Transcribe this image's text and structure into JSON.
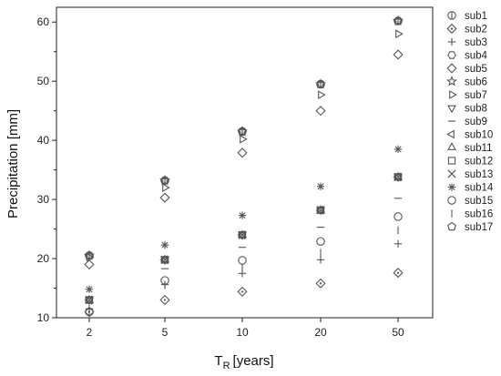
{
  "chart_data": {
    "type": "scatter",
    "xlabel": "T",
    "xlabel_sub": "R",
    "xlabel_unit": "[years]",
    "ylabel": "Precipitation [mm]",
    "categories": [
      "2",
      "5",
      "10",
      "20",
      "50"
    ],
    "y_ticks": [
      "10",
      "20",
      "30",
      "40",
      "50",
      "60"
    ],
    "ylim": [
      10,
      62.5
    ],
    "grid": false,
    "legend_position": "right",
    "marker_color": "#555555",
    "series": [
      {
        "name": "sub1",
        "marker": "circle-bar",
        "values": [
          20.5,
          33.2,
          41.5,
          49.5,
          60.2
        ]
      },
      {
        "name": "sub2",
        "marker": "diamond-dot",
        "values": [
          11.0,
          13.0,
          14.4,
          15.8,
          17.6
        ]
      },
      {
        "name": "sub3",
        "marker": "plus",
        "values": [
          11.5,
          15.6,
          17.5,
          19.8,
          22.5
        ]
      },
      {
        "name": "sub4",
        "marker": "hexagon",
        "values": [
          20.5,
          33.2,
          41.5,
          49.5,
          60.2
        ]
      },
      {
        "name": "sub5",
        "marker": "diamond",
        "values": [
          19.0,
          30.3,
          37.9,
          45.0,
          54.5
        ]
      },
      {
        "name": "sub6",
        "marker": "star",
        "values": [
          20.5,
          33.2,
          41.5,
          49.5,
          60.2
        ]
      },
      {
        "name": "sub7",
        "marker": "tri-right",
        "values": [
          20.2,
          32.0,
          40.2,
          47.7,
          58.0
        ]
      },
      {
        "name": "sub8",
        "marker": "tri-down",
        "values": [
          13.0,
          19.8,
          24.0,
          28.2,
          33.8
        ]
      },
      {
        "name": "sub9",
        "marker": "hline",
        "values": [
          12.5,
          18.3,
          21.9,
          25.3,
          30.2
        ]
      },
      {
        "name": "sub10",
        "marker": "tri-left",
        "values": [
          13.0,
          19.8,
          24.0,
          28.2,
          33.8
        ]
      },
      {
        "name": "sub11",
        "marker": "tri-up",
        "values": [
          13.0,
          19.8,
          24.0,
          28.2,
          33.8
        ]
      },
      {
        "name": "sub12",
        "marker": "square",
        "values": [
          13.0,
          19.8,
          24.0,
          28.2,
          33.8
        ]
      },
      {
        "name": "sub13",
        "marker": "cross",
        "values": [
          13.0,
          19.8,
          24.0,
          28.2,
          33.8
        ]
      },
      {
        "name": "sub14",
        "marker": "asterisk",
        "values": [
          14.8,
          22.3,
          27.3,
          32.2,
          38.5
        ]
      },
      {
        "name": "sub15",
        "marker": "circle",
        "values": [
          11.0,
          16.3,
          19.7,
          22.9,
          27.1
        ]
      },
      {
        "name": "sub16",
        "marker": "vline",
        "values": [
          10.8,
          15.5,
          18.5,
          21.0,
          24.8
        ]
      },
      {
        "name": "sub17",
        "marker": "pentagon",
        "values": [
          20.5,
          33.2,
          41.5,
          49.5,
          60.2
        ]
      }
    ]
  }
}
